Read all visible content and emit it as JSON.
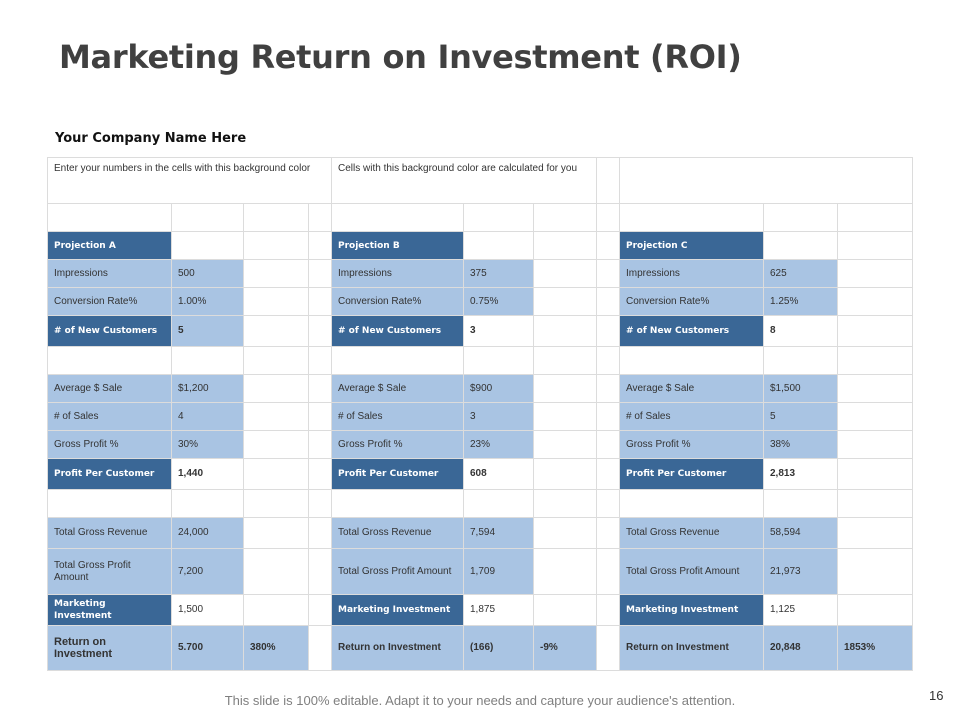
{
  "slide": {
    "title": "Marketing Return on Investment (ROI)",
    "company": "Your Company Name Here",
    "note_input": "Enter your numbers in the cells with this background color",
    "note_calc": "Cells  with this background color are calculated for you",
    "footer": "This slide is 100% editable. Adapt it to your needs and capture your audience's attention.",
    "page_number": "16"
  },
  "colors": {
    "input_cell": "#a9c4e3",
    "header_cell": "#3a6796",
    "title_text": "#404040"
  },
  "projections": [
    {
      "name": "Projection A",
      "impressions": {
        "label": "Impressions",
        "value": "500"
      },
      "conversion_rate": {
        "label": "Conversion Rate%",
        "value": "1.00%"
      },
      "new_customers": {
        "label": "# of New Customers",
        "value": "5"
      },
      "average_sale": {
        "label": "Average $ Sale",
        "value": "$1,200"
      },
      "num_sales": {
        "label": "# of Sales",
        "value": "4"
      },
      "gross_profit_pct": {
        "label": "Gross Profit %",
        "value": "30%"
      },
      "profit_per_customer": {
        "label": "Profit Per Customer",
        "value": "1,440"
      },
      "total_gross_revenue": {
        "label": "Total Gross Revenue",
        "value": "24,000"
      },
      "total_gross_profit": {
        "label": "Total Gross Profit Amount",
        "value": "7,200"
      },
      "marketing_investment": {
        "label": "Marketing Investment",
        "value": "1,500"
      },
      "roi": {
        "label": "Return on Investment",
        "value": "5.700",
        "pct": "380%"
      }
    },
    {
      "name": "Projection B",
      "impressions": {
        "label": "Impressions",
        "value": "375"
      },
      "conversion_rate": {
        "label": "Conversion Rate%",
        "value": "0.75%"
      },
      "new_customers": {
        "label": "# of New Customers",
        "value": "3"
      },
      "average_sale": {
        "label": "Average $ Sale",
        "value": "$900"
      },
      "num_sales": {
        "label": "# of Sales",
        "value": "3"
      },
      "gross_profit_pct": {
        "label": "Gross Profit %",
        "value": "23%"
      },
      "profit_per_customer": {
        "label": "Profit Per Customer",
        "value": "608"
      },
      "total_gross_revenue": {
        "label": "Total Gross Revenue",
        "value": "7,594"
      },
      "total_gross_profit": {
        "label": "Total Gross Profit Amount",
        "value": "1,709"
      },
      "marketing_investment": {
        "label": "Marketing Investment",
        "value": "1,875"
      },
      "roi": {
        "label": "Return on Investment",
        "value": "(166)",
        "pct": "-9%"
      }
    },
    {
      "name": "Projection C",
      "impressions": {
        "label": "Impressions",
        "value": "625"
      },
      "conversion_rate": {
        "label": "Conversion Rate%",
        "value": "1.25%"
      },
      "new_customers": {
        "label": "# of New Customers",
        "value": "8"
      },
      "average_sale": {
        "label": "Average $ Sale",
        "value": "$1,500"
      },
      "num_sales": {
        "label": "# of Sales",
        "value": "5"
      },
      "gross_profit_pct": {
        "label": "Gross Profit %",
        "value": "38%"
      },
      "profit_per_customer": {
        "label": "Profit Per Customer",
        "value": "2,813"
      },
      "total_gross_revenue": {
        "label": "Total Gross Revenue",
        "value": "58,594"
      },
      "total_gross_profit": {
        "label": "Total Gross Profit Amount",
        "value": "21,973"
      },
      "marketing_investment": {
        "label": "Marketing Investment",
        "value": "1,125"
      },
      "roi": {
        "label": "Return on Investment",
        "value": "20,848",
        "pct": "1853%"
      }
    }
  ]
}
